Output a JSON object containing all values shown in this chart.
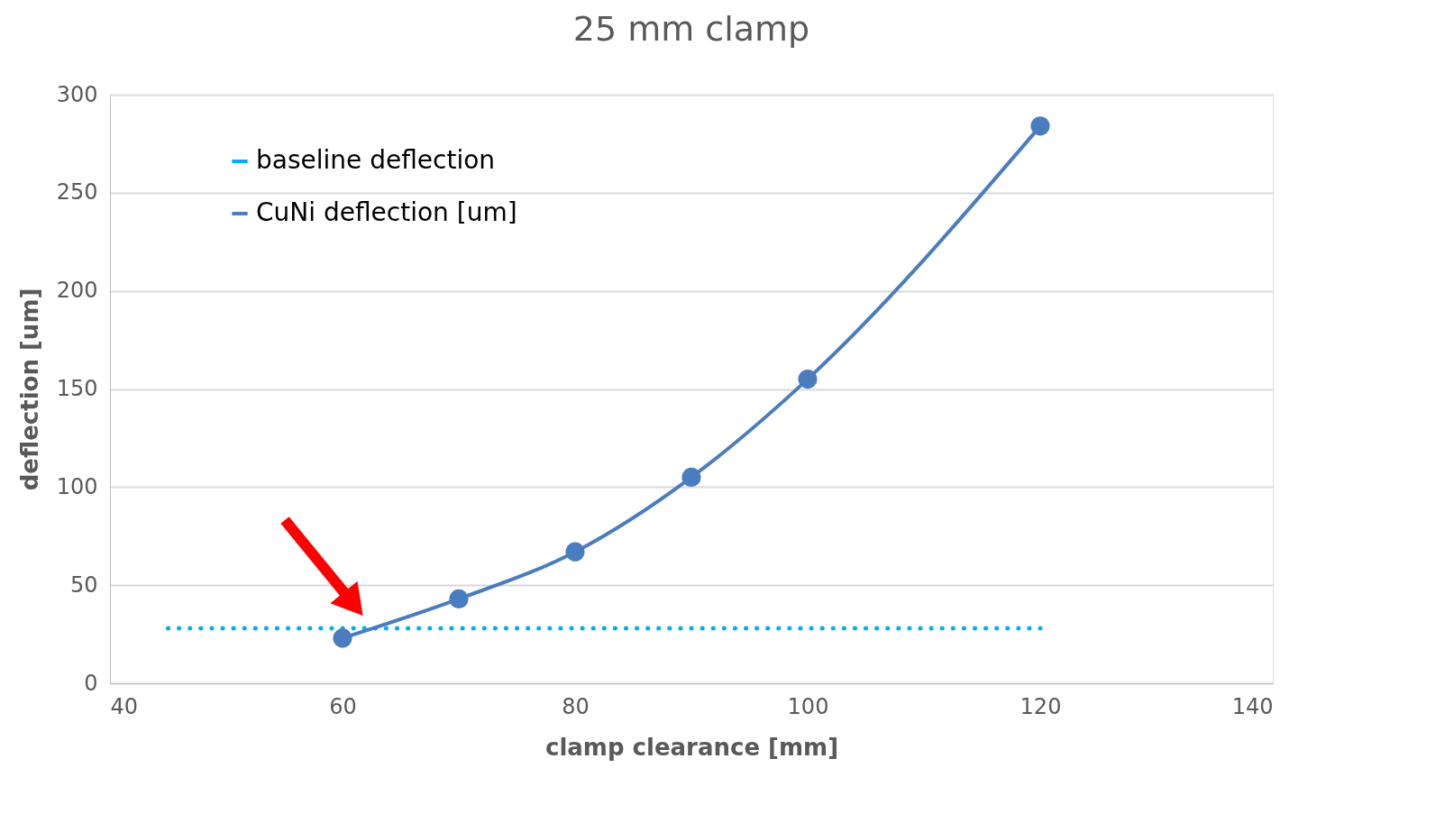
{
  "chart_data": {
    "type": "line",
    "title": "25 mm clamp",
    "xlabel": "clamp clearance [mm]",
    "ylabel": "deflection [um]",
    "xlim": [
      40,
      140
    ],
    "xticks": [
      40,
      60,
      80,
      100,
      120,
      140
    ],
    "ylim": [
      0,
      300
    ],
    "yticks": [
      0,
      50,
      100,
      150,
      200,
      250,
      300
    ],
    "grid": "y",
    "legend": "top left",
    "series": [
      {
        "name": "baseline deflection",
        "color": "#00b0f0",
        "x": [
          45,
          120
        ],
        "values": [
          28,
          28
        ],
        "line_style": "dotted",
        "marker": "none"
      },
      {
        "name": "CuNi deflection [um]",
        "color": "#4a7dbf",
        "x": [
          60,
          70,
          80,
          90,
          100,
          120
        ],
        "values": [
          23,
          43,
          67,
          105,
          155,
          284
        ],
        "line_style": "solid",
        "marker": "circle"
      }
    ]
  }
}
